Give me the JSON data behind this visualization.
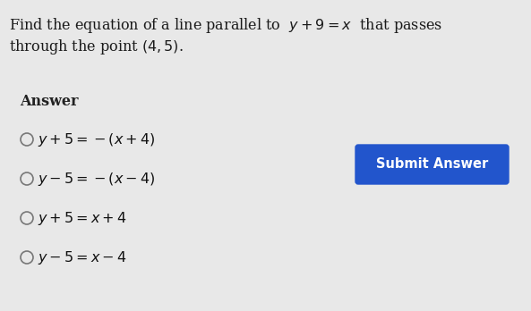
{
  "background_color": "#e8e8e8",
  "question_line1": "Find the equation of a line parallel to  $y + 9 = x$  that passes",
  "question_line2": "through the point $(4, 5)$.",
  "answer_label": "Answer",
  "options": [
    "$y + 5 = -(x + 4)$",
    "$y - 5 = -(x - 4)$",
    "$y + 5 = x + 4$",
    "$y - 5 = x - 4$"
  ],
  "button_text": "Submit Answer",
  "button_color": "#2255cc",
  "button_text_color": "#ffffff",
  "text_color": "#1a1a1a",
  "answer_label_color": "#222222",
  "option_text_color": "#111111",
  "radio_color": "#777777",
  "question_fontsize": 11.5,
  "answer_fontsize": 11.5,
  "option_fontsize": 11.5,
  "button_fontsize": 10.5,
  "fig_width": 5.93,
  "fig_height": 3.48,
  "dpi": 100
}
